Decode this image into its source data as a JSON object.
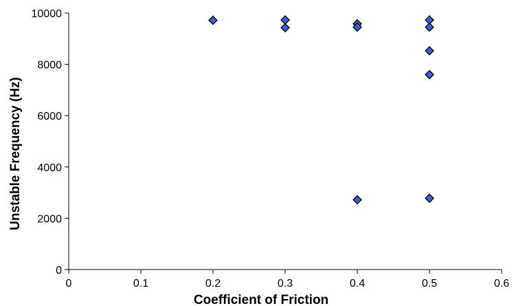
{
  "chart_data": {
    "type": "scatter",
    "title": "",
    "xlabel": "Coefficient of Friction",
    "ylabel": "Unstable Frequency (Hz)",
    "xlim": [
      0,
      0.6
    ],
    "ylim": [
      0,
      10000
    ],
    "x_ticks": [
      0,
      0.1,
      0.2,
      0.3,
      0.4,
      0.5,
      0.6
    ],
    "x_tick_labels": [
      "0",
      "0.1",
      "0.2",
      "0.3",
      "0.4",
      "0.5",
      "0.6"
    ],
    "y_ticks": [
      0,
      2000,
      4000,
      6000,
      8000,
      10000
    ],
    "y_tick_labels": [
      "0",
      "2000",
      "4000",
      "6000",
      "8000",
      "10000"
    ],
    "grid": false,
    "legend": "none",
    "marker": "diamond",
    "marker_color": "#3a5fd9",
    "marker_edge_color": "#000000",
    "points": [
      {
        "x": 0.2,
        "y": 9720
      },
      {
        "x": 0.3,
        "y": 9730
      },
      {
        "x": 0.3,
        "y": 9430
      },
      {
        "x": 0.4,
        "y": 9580
      },
      {
        "x": 0.4,
        "y": 9450
      },
      {
        "x": 0.4,
        "y": 2720
      },
      {
        "x": 0.5,
        "y": 9730
      },
      {
        "x": 0.5,
        "y": 9450
      },
      {
        "x": 0.5,
        "y": 8530
      },
      {
        "x": 0.5,
        "y": 7600
      },
      {
        "x": 0.5,
        "y": 2780
      }
    ]
  }
}
